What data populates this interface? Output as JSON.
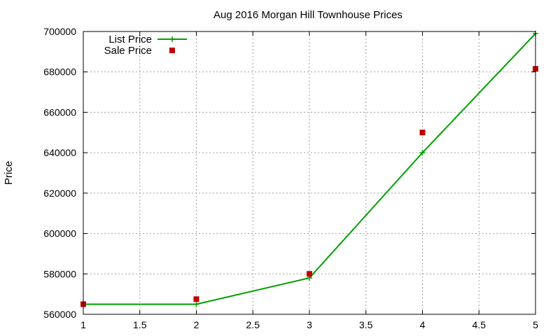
{
  "chart_data": {
    "type": "line",
    "title": "Aug 2016 Morgan Hill Townhouse Prices",
    "xlabel": "",
    "ylabel": "Price",
    "xlim": [
      1,
      5
    ],
    "ylim": [
      560000,
      700000
    ],
    "xticks": [
      1,
      1.5,
      2,
      2.5,
      3,
      3.5,
      4,
      4.5,
      5
    ],
    "xtick_labels": [
      "1",
      "1.5",
      "2",
      "2.5",
      "3",
      "3.5",
      "4",
      "4.5",
      "5"
    ],
    "yticks": [
      560000,
      580000,
      600000,
      620000,
      640000,
      660000,
      680000,
      700000
    ],
    "ytick_labels": [
      "560000",
      "580000",
      "600000",
      "620000",
      "640000",
      "660000",
      "680000",
      "700000"
    ],
    "grid": true,
    "legend_position": "top-left",
    "series": [
      {
        "name": "List Price",
        "style": "line-points",
        "marker": "plus",
        "color": "#00a000",
        "x": [
          1,
          2,
          3,
          4,
          5
        ],
        "y": [
          565000,
          565000,
          578000,
          640000,
          699000
        ]
      },
      {
        "name": "Sale Price",
        "style": "points",
        "marker": "square",
        "color": "#c00000",
        "x": [
          1,
          2,
          3,
          4,
          5
        ],
        "y": [
          565000,
          567500,
          580000,
          650000,
          681500
        ]
      }
    ]
  }
}
